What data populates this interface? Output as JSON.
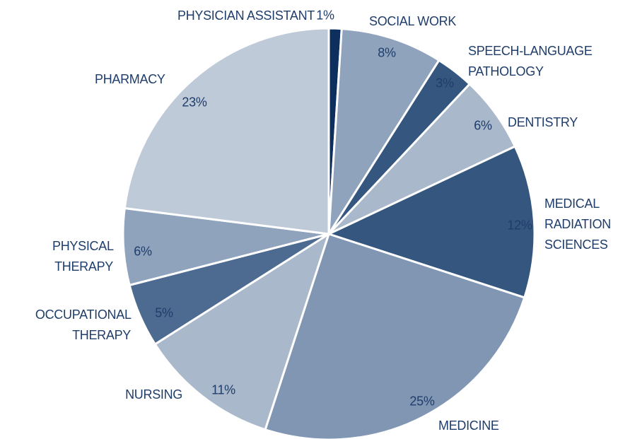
{
  "chart_data": {
    "type": "pie",
    "categories": [
      "PHYSICIAN ASSISTANT",
      "SOCIAL WORK",
      "SPEECH-LANGUAGE PATHOLOGY",
      "DENTISTRY",
      "MEDICAL RADIATION SCIENCES",
      "MEDICINE",
      "NURSING",
      "OCCUPATIONAL THERAPY",
      "PHYSICAL THERAPY",
      "PHARMACY"
    ],
    "values": [
      1,
      8,
      3,
      6,
      12,
      25,
      11,
      5,
      6,
      23
    ],
    "value_labels": [
      "1%",
      "8%",
      "3%",
      "6%",
      "12%",
      "25%",
      "11%",
      "5%",
      "6%",
      "23%"
    ],
    "colors": [
      "#0d2f5e",
      "#8fa3bd",
      "#35577f",
      "#a9b8cb",
      "#35577f",
      "#8196b3",
      "#a9b8cb",
      "#4d6b91",
      "#8fa3bd",
      "#bfcad8"
    ]
  }
}
